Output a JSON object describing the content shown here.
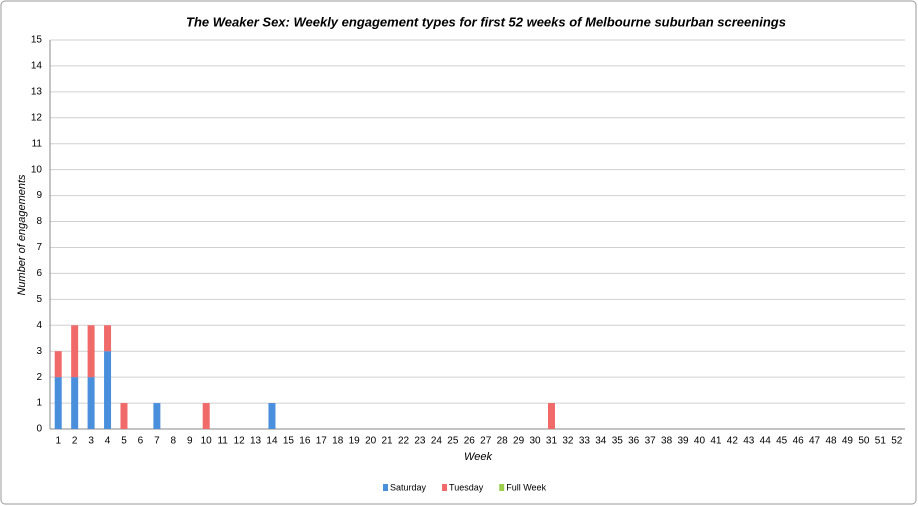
{
  "chart_data": {
    "type": "bar",
    "stacked": true,
    "title": "The Weaker Sex: Weekly engagement types for first 52 weeks of Melbourne suburban screenings",
    "xlabel": "Week",
    "ylabel": "Number of engagements",
    "categories": [
      1,
      2,
      3,
      4,
      5,
      6,
      7,
      8,
      9,
      10,
      11,
      12,
      13,
      14,
      15,
      16,
      17,
      18,
      19,
      20,
      21,
      22,
      23,
      24,
      25,
      26,
      27,
      28,
      29,
      30,
      31,
      32,
      33,
      34,
      35,
      36,
      37,
      38,
      39,
      40,
      41,
      42,
      43,
      44,
      45,
      46,
      47,
      48,
      49,
      50,
      51,
      52
    ],
    "series": [
      {
        "name": "Saturday",
        "color": "#4a8fdc",
        "values": [
          2,
          2,
          2,
          3,
          0,
          0,
          1,
          0,
          0,
          0,
          0,
          0,
          0,
          1,
          0,
          0,
          0,
          0,
          0,
          0,
          0,
          0,
          0,
          0,
          0,
          0,
          0,
          0,
          0,
          0,
          0,
          0,
          0,
          0,
          0,
          0,
          0,
          0,
          0,
          0,
          0,
          0,
          0,
          0,
          0,
          0,
          0,
          0,
          0,
          0,
          0,
          0
        ]
      },
      {
        "name": "Tuesday",
        "color": "#f06a6a",
        "values": [
          1,
          2,
          2,
          1,
          1,
          0,
          0,
          0,
          0,
          1,
          0,
          0,
          0,
          0,
          0,
          0,
          0,
          0,
          0,
          0,
          0,
          0,
          0,
          0,
          0,
          0,
          0,
          0,
          0,
          0,
          1,
          0,
          0,
          0,
          0,
          0,
          0,
          0,
          0,
          0,
          0,
          0,
          0,
          0,
          0,
          0,
          0,
          0,
          0,
          0,
          0,
          0
        ]
      },
      {
        "name": "Full Week",
        "color": "#9ccf4e",
        "values": [
          0,
          0,
          0,
          0,
          0,
          0,
          0,
          0,
          0,
          0,
          0,
          0,
          0,
          0,
          0,
          0,
          0,
          0,
          0,
          0,
          0,
          0,
          0,
          0,
          0,
          0,
          0,
          0,
          0,
          0,
          0,
          0,
          0,
          0,
          0,
          0,
          0,
          0,
          0,
          0,
          0,
          0,
          0,
          0,
          0,
          0,
          0,
          0,
          0,
          0,
          0,
          0
        ]
      }
    ],
    "ylim": [
      0,
      15
    ],
    "yticks": [
      0,
      1,
      2,
      3,
      4,
      5,
      6,
      7,
      8,
      9,
      10,
      11,
      12,
      13,
      14,
      15
    ],
    "grid": true,
    "legend": "bottom"
  }
}
